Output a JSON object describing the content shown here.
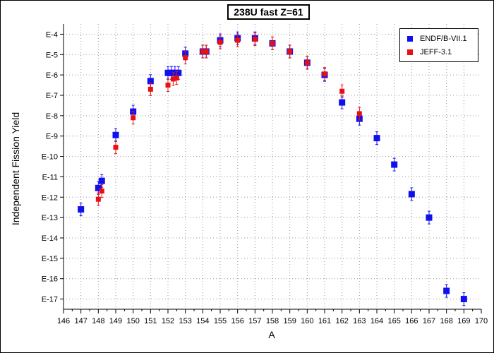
{
  "chart_data": {
    "type": "scatter",
    "title": "238U fast Z=61",
    "xlabel": "A",
    "ylabel": "Independent Fission Yield",
    "xlim": [
      146,
      170
    ],
    "ylim": [
      -17.5,
      -3.5
    ],
    "y_scale": "log10",
    "x_ticks": [
      146,
      147,
      148,
      149,
      150,
      151,
      152,
      153,
      154,
      155,
      156,
      157,
      158,
      159,
      160,
      161,
      162,
      163,
      164,
      165,
      166,
      167,
      168,
      169,
      170
    ],
    "y_ticks": [
      -4,
      -5,
      -6,
      -7,
      -8,
      -9,
      -10,
      -11,
      -12,
      -13,
      -14,
      -15,
      -16,
      -17
    ],
    "y_tick_labels": [
      "E-4",
      "E-5",
      "E-6",
      "E-7",
      "E-8",
      "E-9",
      "E-10",
      "E-11",
      "E-12",
      "E-13",
      "E-14",
      "E-15",
      "E-16",
      "E-17"
    ],
    "grid": true,
    "legend_position": "top-right",
    "series": [
      {
        "name": "ENDF/B-VII.1",
        "color": "#1010ee",
        "marker": "square",
        "points": [
          {
            "x": 147,
            "y": -12.6
          },
          {
            "x": 148,
            "y": -11.55
          },
          {
            "x": 148.2,
            "y": -11.2
          },
          {
            "x": 149,
            "y": -8.95
          },
          {
            "x": 150,
            "y": -7.8
          },
          {
            "x": 151,
            "y": -6.3
          },
          {
            "x": 152,
            "y": -5.9
          },
          {
            "x": 152.2,
            "y": -5.9
          },
          {
            "x": 152.4,
            "y": -5.9
          },
          {
            "x": 152.6,
            "y": -5.9
          },
          {
            "x": 153,
            "y": -4.95
          },
          {
            "x": 154,
            "y": -4.85
          },
          {
            "x": 154.2,
            "y": -4.85
          },
          {
            "x": 155,
            "y": -4.3
          },
          {
            "x": 156,
            "y": -4.2
          },
          {
            "x": 157,
            "y": -4.2
          },
          {
            "x": 158,
            "y": -4.45
          },
          {
            "x": 159,
            "y": -4.85
          },
          {
            "x": 160,
            "y": -5.4
          },
          {
            "x": 161,
            "y": -6.0
          },
          {
            "x": 162,
            "y": -7.35
          },
          {
            "x": 163,
            "y": -8.15
          },
          {
            "x": 164,
            "y": -9.1
          },
          {
            "x": 165,
            "y": -10.4
          },
          {
            "x": 166,
            "y": -11.85
          },
          {
            "x": 167,
            "y": -13.0
          },
          {
            "x": 168,
            "y": -16.6
          },
          {
            "x": 169,
            "y": -17.0
          }
        ]
      },
      {
        "name": "JEFF-3.1",
        "color": "#e81010",
        "marker": "square",
        "points": [
          {
            "x": 148,
            "y": -12.1
          },
          {
            "x": 148.2,
            "y": -11.7
          },
          {
            "x": 149,
            "y": -9.55
          },
          {
            "x": 150,
            "y": -8.1
          },
          {
            "x": 151,
            "y": -6.7
          },
          {
            "x": 152,
            "y": -6.5
          },
          {
            "x": 152.3,
            "y": -6.2
          },
          {
            "x": 152.5,
            "y": -6.15
          },
          {
            "x": 153,
            "y": -5.15
          },
          {
            "x": 154,
            "y": -4.85
          },
          {
            "x": 154.2,
            "y": -4.85
          },
          {
            "x": 155,
            "y": -4.4
          },
          {
            "x": 156,
            "y": -4.3
          },
          {
            "x": 157,
            "y": -4.25
          },
          {
            "x": 158,
            "y": -4.45
          },
          {
            "x": 159,
            "y": -4.85
          },
          {
            "x": 160,
            "y": -5.4
          },
          {
            "x": 161,
            "y": -5.95
          },
          {
            "x": 162,
            "y": -6.8
          },
          {
            "x": 163,
            "y": -7.9
          }
        ]
      }
    ]
  }
}
